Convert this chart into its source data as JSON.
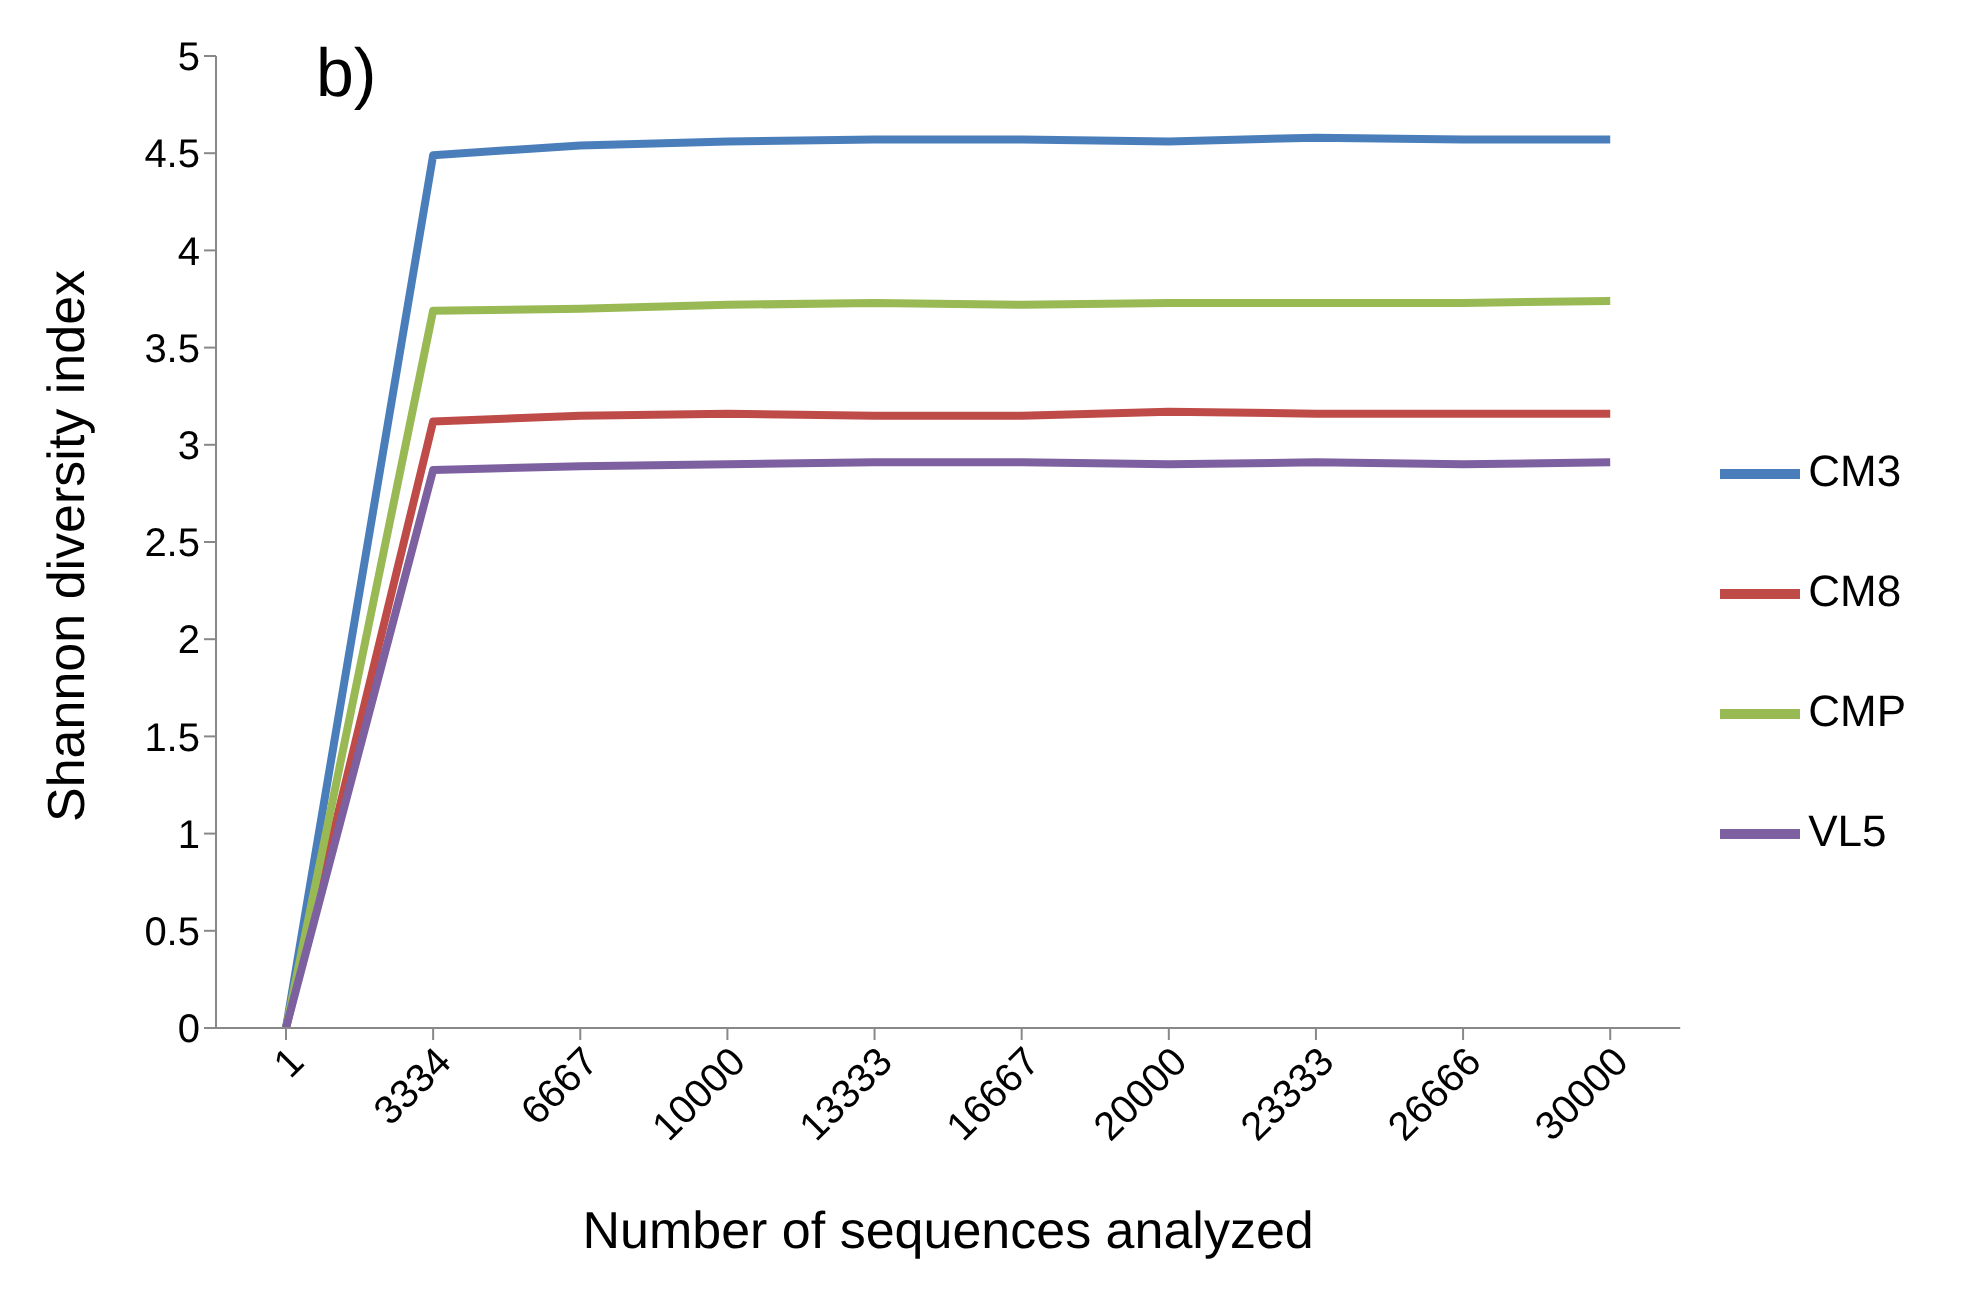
{
  "chart_data": {
    "type": "line",
    "xlabel": "Number of sequences analyzed",
    "ylabel": "Shannon diversity index",
    "annotations": [
      "b)"
    ],
    "categories": [
      "1",
      "3334",
      "6667",
      "10000",
      "13333",
      "16667",
      "20000",
      "23333",
      "26666",
      "30000"
    ],
    "ylim": [
      0,
      5
    ],
    "yticks": [
      0,
      0.5,
      1,
      1.5,
      2,
      2.5,
      3,
      3.5,
      4,
      4.5,
      5
    ],
    "grid": false,
    "legend": "right",
    "marker": "none",
    "line_style": "solid",
    "series": [
      {
        "name": "CM3",
        "color": "#4a7ebb",
        "values": [
          0,
          4.49,
          4.54,
          4.56,
          4.57,
          4.57,
          4.56,
          4.58,
          4.57,
          4.57
        ]
      },
      {
        "name": "CM8",
        "color": "#be4b48",
        "values": [
          0,
          3.12,
          3.15,
          3.16,
          3.15,
          3.15,
          3.17,
          3.16,
          3.16,
          3.16
        ]
      },
      {
        "name": "CMP",
        "color": "#98b954",
        "values": [
          0,
          3.69,
          3.7,
          3.72,
          3.73,
          3.72,
          3.73,
          3.73,
          3.73,
          3.74
        ]
      },
      {
        "name": "VL5",
        "color": "#7d60a0",
        "values": [
          0,
          2.87,
          2.89,
          2.9,
          2.91,
          2.91,
          2.9,
          2.91,
          2.9,
          2.91
        ]
      }
    ]
  }
}
